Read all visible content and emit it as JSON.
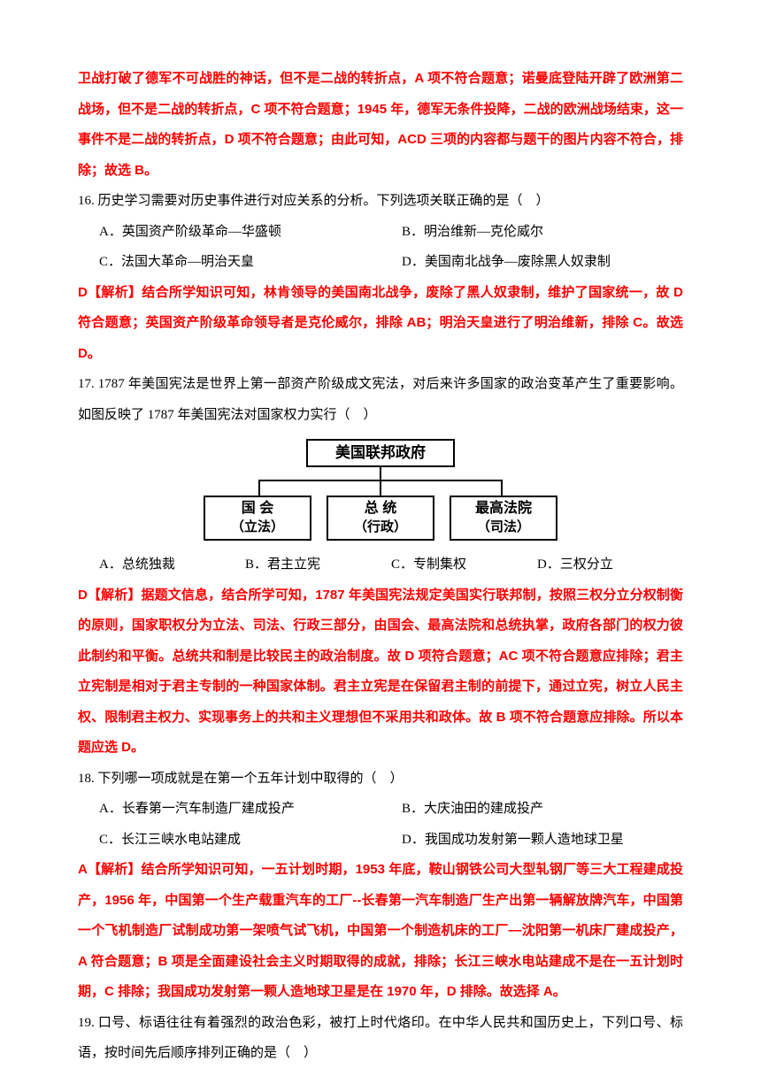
{
  "colors": {
    "red": "#ff0000",
    "black": "#000000",
    "bg": "#ffffff"
  },
  "para1": "卫战打破了德军不可战胜的神话，但不是二战的转折点，A 项不符合题意；诺曼底登陆开辟了欧洲第二战场，但不是二战的转折点，C 项不符合题意；1945 年，德军无条件投降，二战的欧洲战场结束，这一事件不是二战的转折点，D 项不符合题意；由此可知，ACD 三项的内容都与题干的图片内容不符合，排除；故选 B。",
  "q16": {
    "stem": "16. 历史学习需要对历史事件进行对应关系的分析。下列选项关联正确的是（　）",
    "opts": {
      "a": "A．英国资产阶级革命—华盛顿",
      "b": "B．明治维新—克伦威尔",
      "c": "C．法国大革命—明治天皇",
      "d": "D．美国南北战争—废除黑人奴隶制"
    },
    "exp": "D【解析】结合所学知识可知，林肯领导的美国南北战争，废除了黑人奴隶制，维护了国家统一，故 D 符合题意；英国资产阶级革命领导者是克伦威尔，排除 AB；明治天皇进行了明治维新，排除 C。故选 D。"
  },
  "q17": {
    "stem": "17. 1787 年美国宪法是世界上第一部资产阶级成文宪法，对后来许多国家的政治变革产生了重要影响。如图反映了 1787 年美国宪法对国家权力实行（　）",
    "diagram": {
      "top": "美国联邦政府",
      "b1": {
        "t": "国 会",
        "s": "（立法）"
      },
      "b2": {
        "t": "总 统",
        "s": "（行政）"
      },
      "b3": {
        "t": "最高法院",
        "s": "（司法）"
      }
    },
    "opts": {
      "a": "A．总统独裁",
      "b": "B．君主立宪",
      "c": "C．专制集权",
      "d": "D．三权分立"
    },
    "exp": "D【解析】据题文信息，结合所学可知，1787 年美国宪法规定美国实行联邦制，按照三权分立分权制衡的原则，国家职权分为立法、司法、行政三部分，由国会、最高法院和总统执掌，政府各部门的权力彼此制约和平衡。总统共和制是比较民主的政治制度。故 D 项符合题意；AC 项不符合题意应排除；君主立宪制是相对于君主专制的一种国家体制。君主立宪是在保留君主制的前提下，通过立宪，树立人民主权、限制君主权力、实现事务上的共和主义理想但不采用共和政体。故 B 项不符合题意应排除。所以本题应选 D。"
  },
  "q18": {
    "stem": "18. 下列哪一项成就是在第一个五年计划中取得的（　）",
    "opts": {
      "a": "A．长春第一汽车制造厂建成投产",
      "b": "B．大庆油田的建成投产",
      "c": "C．长江三峡水电站建成",
      "d": "D．我国成功发射第一颗人造地球卫星"
    },
    "exp": "A【解析】结合所学知识可知，一五计划时期，1953 年底，鞍山钢铁公司大型轧钢厂等三大工程建成投产，1956 年，中国第一个生产载重汽车的工厂--长春第一汽车制造厂生产出第一辆解放牌汽车，中国第一个飞机制造厂试制成功第一架喷气试飞机，中国第一个制造机床的工厂—沈阳第一机床厂建成投产，A 符合题意；B 项是全面建设社会主义时期取得的成就，排除；长江三峡水电站建成不是在一五计划时期，C 排除；我国成功发射第一颗人造地球卫星是在 1970 年，D 排除。故选择 A。"
  },
  "q19": {
    "stem": "19. 口号、标语往往有着强烈的政治色彩，被打上时代烙印。在中华人民共和国历史上，下列口号、标语，按时间先后顺序排列正确的是（　）"
  }
}
